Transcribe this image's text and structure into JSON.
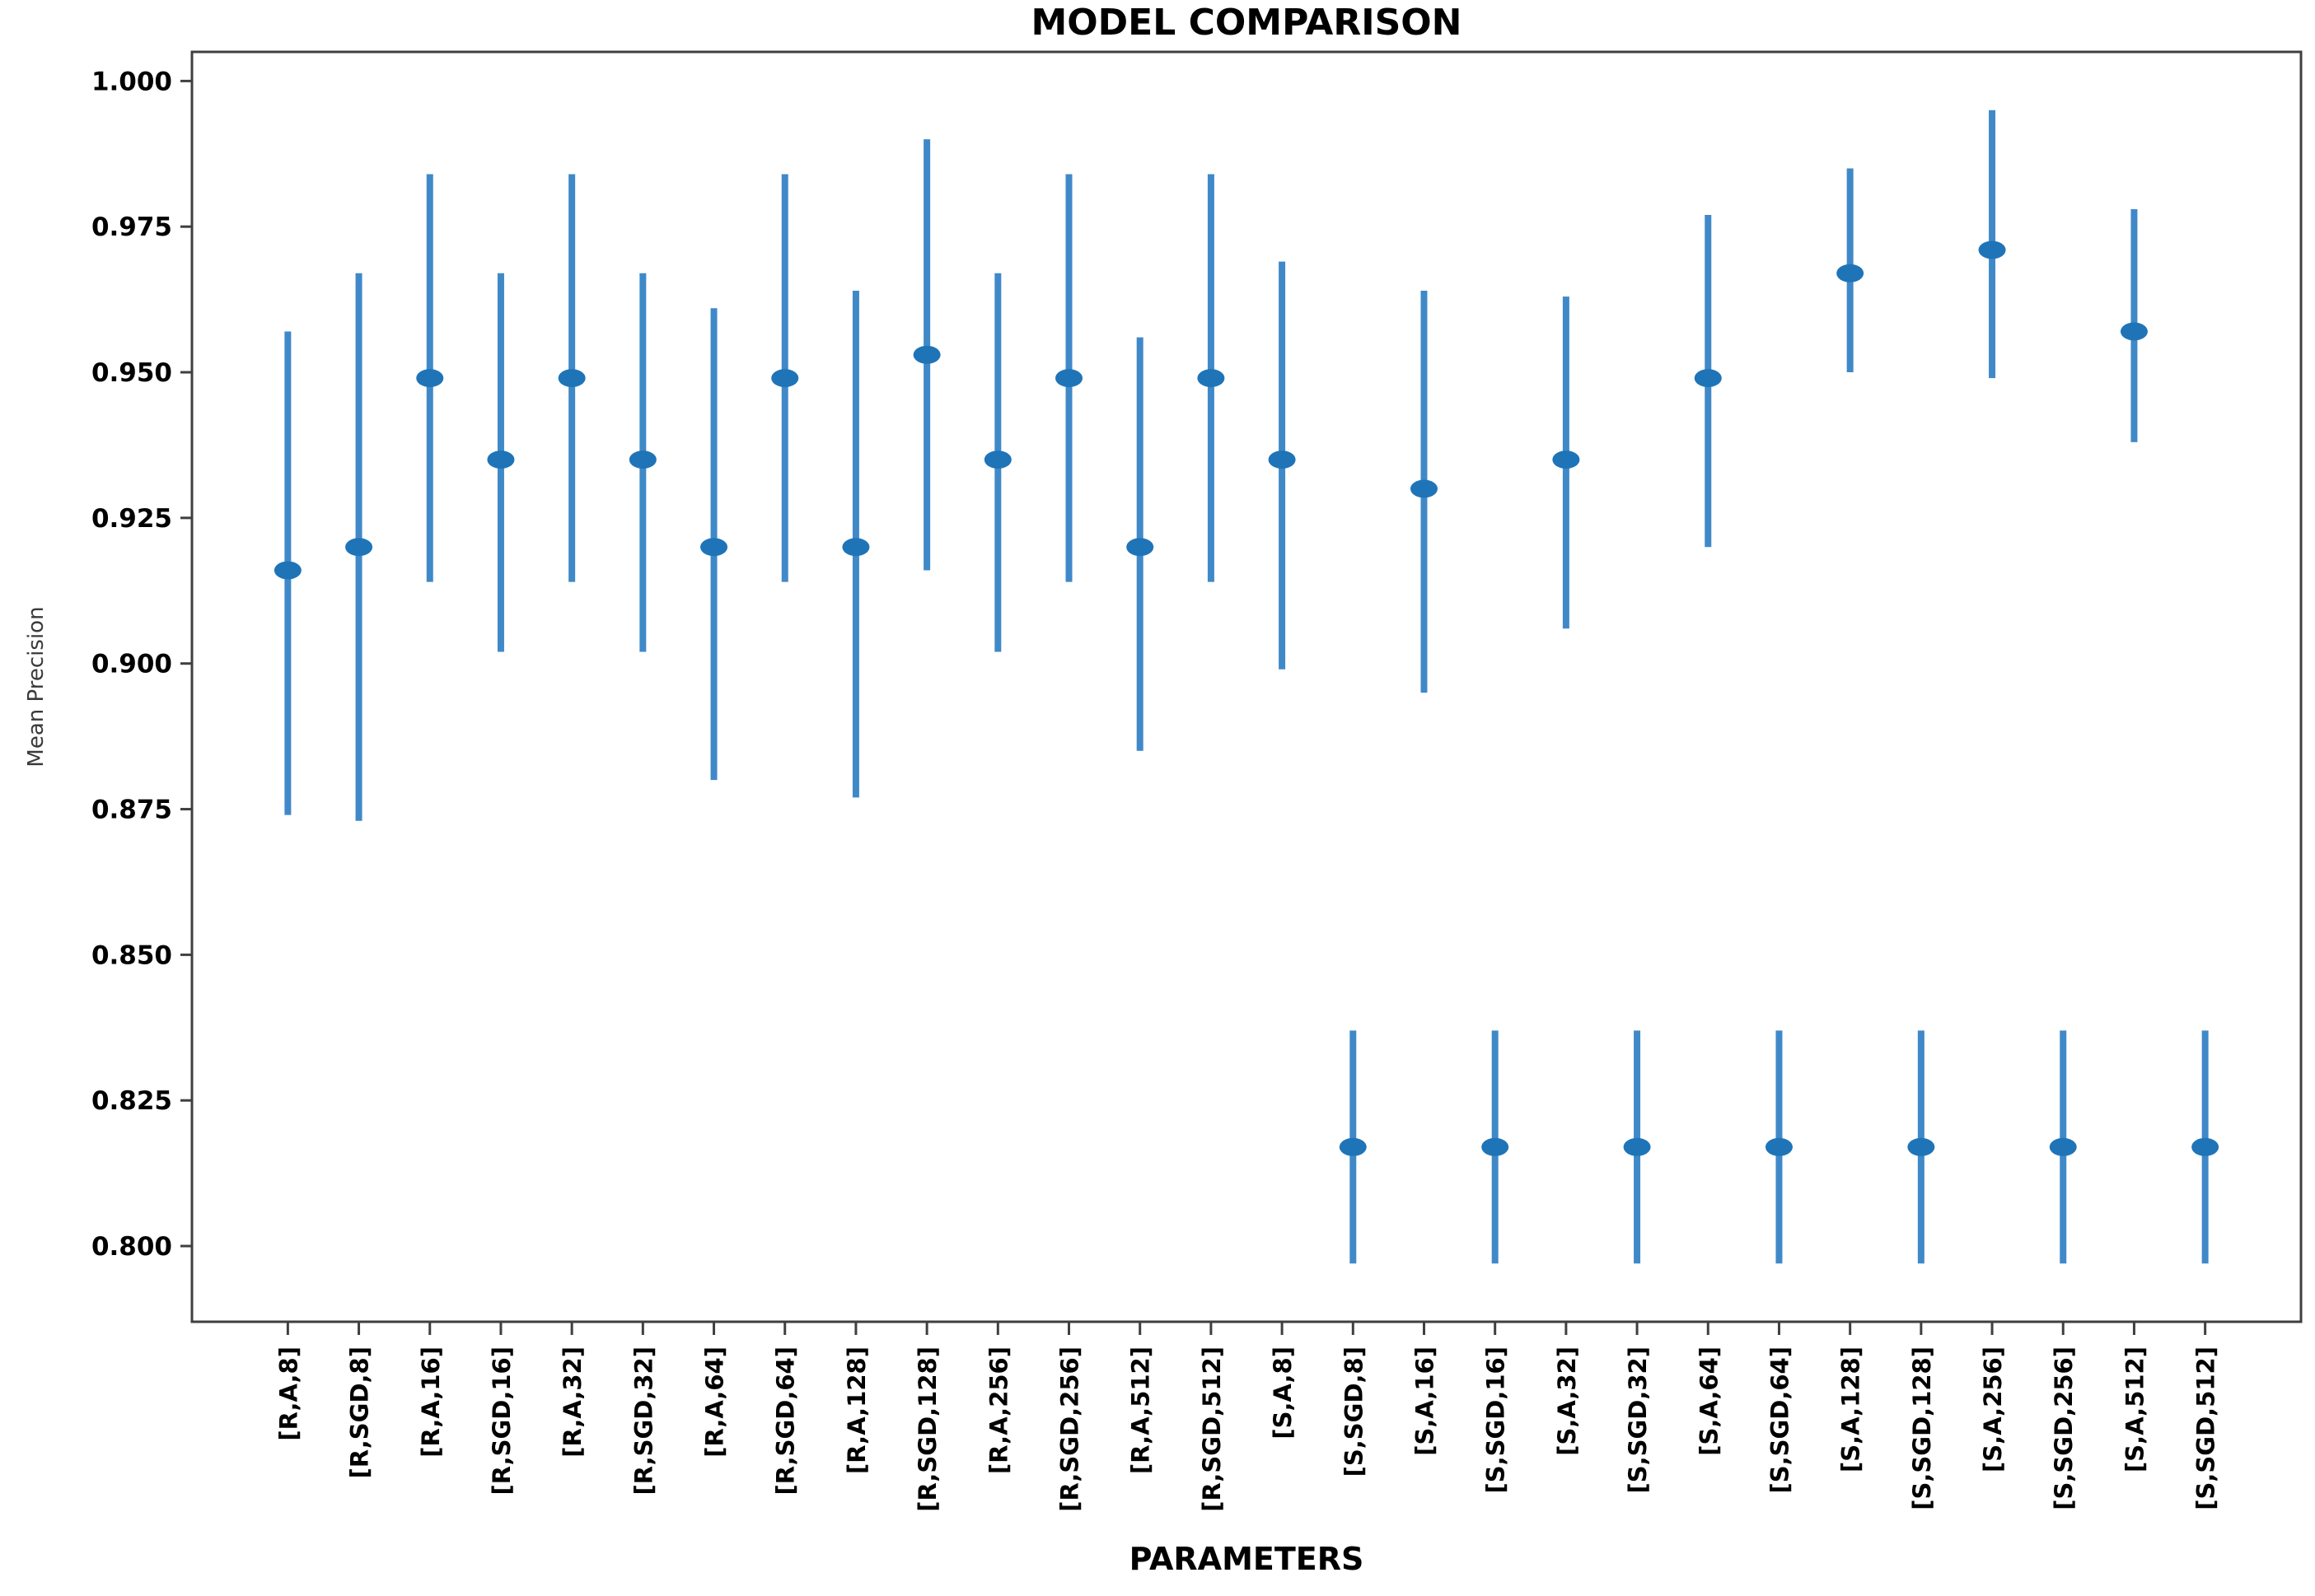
{
  "title": "MODEL COMPARISON",
  "chart_data": {
    "type": "scatter",
    "subtype": "errorbar",
    "title": "MODEL COMPARISON",
    "xlabel": "PARAMETERS",
    "ylabel": "Mean Precision",
    "categories": [
      "[R,A,8]",
      "[R,SGD,8]",
      "[R,A,16]",
      "[R,SGD,16]",
      "[R,A,32]",
      "[R,SGD,32]",
      "[R,A,64]",
      "[R,SGD,64]",
      "[R,A,128]",
      "[R,SGD,128]",
      "[R,A,256]",
      "[R,SGD,256]",
      "[R,A,512]",
      "[R,SGD,512]",
      "[S,A,8]",
      "[S,SGD,8]",
      "[S,A,16]",
      "[S,SGD,16]",
      "[S,A,32]",
      "[S,SGD,32]",
      "[S,A,64]",
      "[S,SGD,64]",
      "[S,A,128]",
      "[S,SGD,128]",
      "[S,A,256]",
      "[S,SGD,256]",
      "[S,A,512]",
      "[S,SGD,512]"
    ],
    "series": [
      {
        "name": "Mean Precision",
        "values": [
          0.916,
          0.92,
          0.949,
          0.935,
          0.949,
          0.935,
          0.92,
          0.949,
          0.92,
          0.953,
          0.935,
          0.949,
          0.92,
          0.949,
          0.935,
          0.817,
          0.93,
          0.817,
          0.935,
          0.817,
          0.949,
          0.817,
          0.967,
          0.817,
          0.971,
          0.817,
          0.957,
          0.817
        ],
        "err_low": [
          0.874,
          0.873,
          0.914,
          0.902,
          0.914,
          0.902,
          0.88,
          0.914,
          0.877,
          0.916,
          0.902,
          0.914,
          0.885,
          0.914,
          0.899,
          0.797,
          0.895,
          0.797,
          0.906,
          0.797,
          0.92,
          0.797,
          0.95,
          0.797,
          0.949,
          0.797,
          0.938,
          0.797
        ],
        "err_high": [
          0.957,
          0.967,
          0.984,
          0.967,
          0.984,
          0.967,
          0.961,
          0.984,
          0.964,
          0.99,
          0.967,
          0.984,
          0.956,
          0.984,
          0.969,
          0.837,
          0.964,
          0.837,
          0.963,
          0.837,
          0.977,
          0.837,
          0.985,
          0.837,
          0.995,
          0.837,
          0.978,
          0.837
        ]
      }
    ],
    "ylim": [
      0.787,
      1.005
    ],
    "yticks": [
      0.8,
      0.825,
      0.85,
      0.875,
      0.9,
      0.925,
      0.95,
      0.975,
      1.0
    ],
    "ytick_decimals": 3,
    "grid": false,
    "legend": "none",
    "colors": {
      "errorbar_line": "#4089c8",
      "marker": "#1f74b8",
      "axis": "#3f3f3f",
      "text": "#000000",
      "background": "#ffffff"
    }
  }
}
